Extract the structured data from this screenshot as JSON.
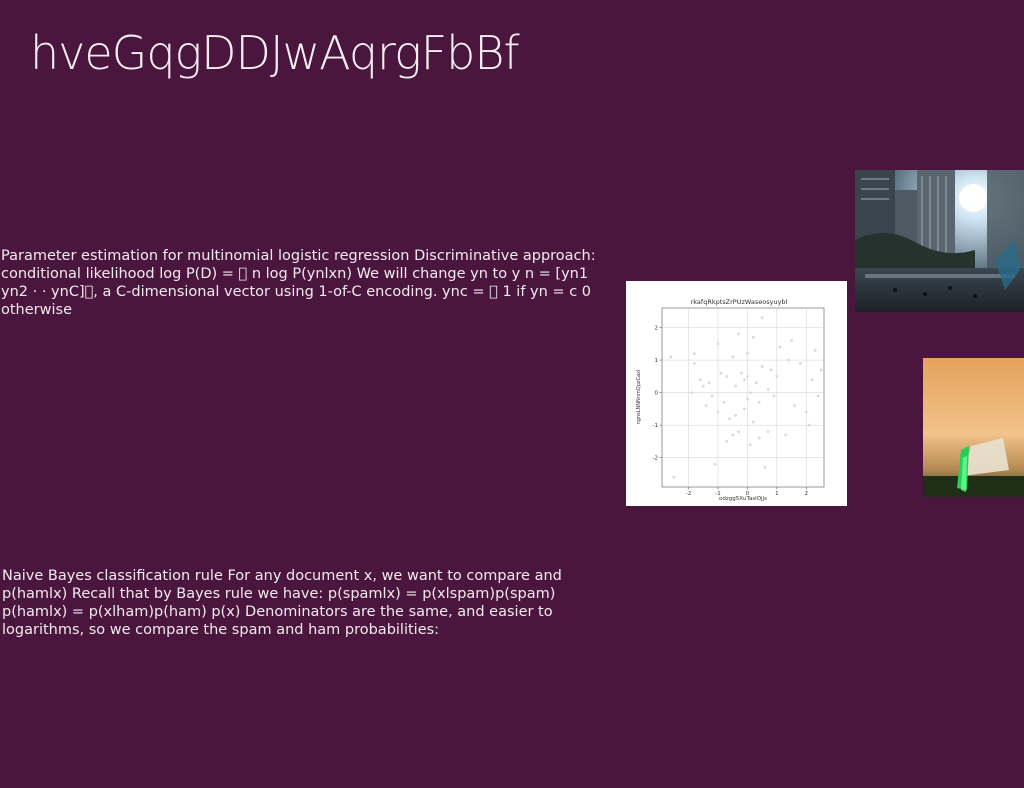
{
  "slide": {
    "title": "hveGqgDDJwAqrgFbBf",
    "paragraph_1": "Parameter estimation for multinomial logistic regression Discriminative approach: conditional likelihood log P(D) = \u0000 n log P(ynlxn) We will change yn to y n = [yn1 yn2 · · ynC]\u0000, a C-dimensional vector using 1-of-C encoding. ync = \u0000 1 if yn = c 0 otherwise",
    "paragraph_2": "Naive Bayes classification rule For any document x, we want to compare and p(hamlx) Recall that by Bayes rule we have: p(spamlx) = p(xlspam)p(spam) p(hamlx) = p(xlham)p(ham) p(x) Denominators are the same, and easier to logarithms, so we compare the spam and ham probabilities:"
  },
  "colors": {
    "background": "#4a163d",
    "text": "#f3eaf0",
    "points": "#d9d9d9"
  },
  "chart_data": {
    "type": "scatter",
    "title": "rkafqRkptsZrPUzWaseosyuybl",
    "xlabel": "odzgg5XuTaslOjjs",
    "ylabel": "ngnsLNNNnmQpzCaxl",
    "xlim": [
      -2.9,
      2.6
    ],
    "ylim": [
      -2.9,
      2.6
    ],
    "xticks": [
      -2,
      -1,
      0,
      1,
      2
    ],
    "yticks": [
      -2,
      -1,
      0,
      1,
      2
    ],
    "grid": true,
    "points": [
      {
        "x": -2.6,
        "y": 1.1
      },
      {
        "x": -2.5,
        "y": -2.6
      },
      {
        "x": -1.9,
        "y": 0.0
      },
      {
        "x": -1.8,
        "y": 1.2
      },
      {
        "x": -1.8,
        "y": 0.9
      },
      {
        "x": -1.6,
        "y": 0.4
      },
      {
        "x": -1.5,
        "y": 0.2
      },
      {
        "x": -1.4,
        "y": -0.4
      },
      {
        "x": -1.3,
        "y": 0.3
      },
      {
        "x": -1.2,
        "y": -0.1
      },
      {
        "x": -1.1,
        "y": -2.2
      },
      {
        "x": -1.0,
        "y": 1.5
      },
      {
        "x": -1.0,
        "y": -0.6
      },
      {
        "x": -0.9,
        "y": 0.6
      },
      {
        "x": -0.8,
        "y": -0.3
      },
      {
        "x": -0.7,
        "y": -1.5
      },
      {
        "x": -0.7,
        "y": 0.5
      },
      {
        "x": -0.6,
        "y": -0.8
      },
      {
        "x": -0.5,
        "y": 1.1
      },
      {
        "x": -0.5,
        "y": -1.3
      },
      {
        "x": -0.4,
        "y": 0.2
      },
      {
        "x": -0.4,
        "y": -0.7
      },
      {
        "x": -0.3,
        "y": 1.8
      },
      {
        "x": -0.3,
        "y": -1.2
      },
      {
        "x": -0.2,
        "y": 0.6
      },
      {
        "x": -0.1,
        "y": 0.4
      },
      {
        "x": -0.1,
        "y": -0.5
      },
      {
        "x": 0.0,
        "y": 1.2
      },
      {
        "x": 0.0,
        "y": -0.2
      },
      {
        "x": 0.0,
        "y": 0.5
      },
      {
        "x": 0.1,
        "y": -1.6
      },
      {
        "x": 0.1,
        "y": 0.0
      },
      {
        "x": 0.2,
        "y": 1.7
      },
      {
        "x": 0.2,
        "y": -0.9
      },
      {
        "x": 0.3,
        "y": 0.3
      },
      {
        "x": 0.4,
        "y": -1.4
      },
      {
        "x": 0.4,
        "y": -0.3
      },
      {
        "x": 0.5,
        "y": 0.8
      },
      {
        "x": 0.5,
        "y": 2.3
      },
      {
        "x": 0.6,
        "y": -2.3
      },
      {
        "x": 0.7,
        "y": -1.2
      },
      {
        "x": 0.7,
        "y": 0.1
      },
      {
        "x": 0.8,
        "y": 0.7
      },
      {
        "x": 0.9,
        "y": -0.1
      },
      {
        "x": 1.0,
        "y": 0.5
      },
      {
        "x": 1.1,
        "y": 1.4
      },
      {
        "x": 1.3,
        "y": -1.3
      },
      {
        "x": 1.4,
        "y": 1.0
      },
      {
        "x": 1.5,
        "y": 1.6
      },
      {
        "x": 1.6,
        "y": -0.4
      },
      {
        "x": 1.8,
        "y": 0.9
      },
      {
        "x": 2.0,
        "y": -0.6
      },
      {
        "x": 2.1,
        "y": -1.0
      },
      {
        "x": 2.2,
        "y": 0.4
      },
      {
        "x": 2.3,
        "y": 1.3
      },
      {
        "x": 2.4,
        "y": -0.1
      },
      {
        "x": 2.5,
        "y": 0.7
      }
    ]
  }
}
